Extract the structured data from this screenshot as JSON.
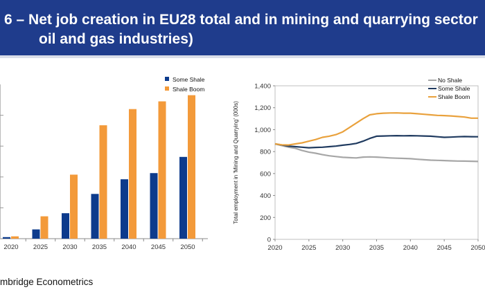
{
  "header": {
    "title_line1": "6 – Net job creation in EU28 total and in mining and quarrying sector",
    "title_line2": "oil and gas industries)"
  },
  "footer": {
    "source": "mbridge Econometrics"
  },
  "colors": {
    "banner": "#1f3c8c",
    "some_shale": "#0d3b8c",
    "shale_boom": "#f39a3a",
    "no_shale": "#a6a6a6",
    "some_shale_line": "#1f3a5f",
    "shale_boom_line": "#e9a13c"
  },
  "chart_data": [
    {
      "type": "bar",
      "title": "",
      "xlabel": "",
      "ylabel": "",
      "categories": [
        "2020",
        "2025",
        "2030",
        "2035",
        "2040",
        "2045",
        "2050"
      ],
      "series": [
        {
          "name": "Some Shale",
          "values": [
            2,
            12,
            33,
            58,
            77,
            85,
            106
          ]
        },
        {
          "name": "Shale Boom",
          "values": [
            3,
            29,
            83,
            147,
            168,
            178,
            186
          ]
        }
      ],
      "ylim": [
        0,
        200
      ],
      "legend_position": "top-right"
    },
    {
      "type": "line",
      "title": "",
      "xlabel": "",
      "ylabel": "Total employment in 'Mining and Quarrying' (000s)",
      "x": [
        2020,
        2021,
        2022,
        2023,
        2024,
        2025,
        2026,
        2027,
        2028,
        2029,
        2030,
        2031,
        2032,
        2033,
        2034,
        2035,
        2036,
        2037,
        2038,
        2039,
        2040,
        2041,
        2042,
        2043,
        2044,
        2045,
        2046,
        2047,
        2048,
        2049,
        2050
      ],
      "xticks": [
        "2020",
        "2025",
        "2030",
        "2035",
        "2040",
        "2045",
        "2050"
      ],
      "yticks": [
        "0",
        "200",
        "400",
        "600",
        "800",
        "1,000",
        "1,200",
        "1,400"
      ],
      "series": [
        {
          "name": "No Shale",
          "values": [
            870,
            855,
            840,
            830,
            810,
            795,
            785,
            772,
            762,
            755,
            748,
            745,
            742,
            750,
            752,
            750,
            746,
            742,
            740,
            738,
            735,
            730,
            726,
            722,
            720,
            718,
            716,
            714,
            713,
            712,
            710
          ]
        },
        {
          "name": "Some Shale",
          "values": [
            870,
            860,
            850,
            845,
            840,
            835,
            838,
            840,
            845,
            850,
            858,
            865,
            875,
            895,
            920,
            940,
            942,
            944,
            945,
            944,
            945,
            944,
            942,
            940,
            935,
            930,
            932,
            935,
            937,
            936,
            935
          ]
        },
        {
          "name": "Shale Boom",
          "values": [
            870,
            862,
            860,
            870,
            880,
            895,
            910,
            930,
            940,
            955,
            980,
            1020,
            1060,
            1100,
            1135,
            1145,
            1150,
            1152,
            1153,
            1150,
            1150,
            1145,
            1140,
            1135,
            1130,
            1128,
            1125,
            1120,
            1115,
            1105,
            1105
          ]
        }
      ],
      "ylim": [
        0,
        1400
      ],
      "xlim": [
        2020,
        2050
      ],
      "legend_position": "top-right"
    }
  ]
}
